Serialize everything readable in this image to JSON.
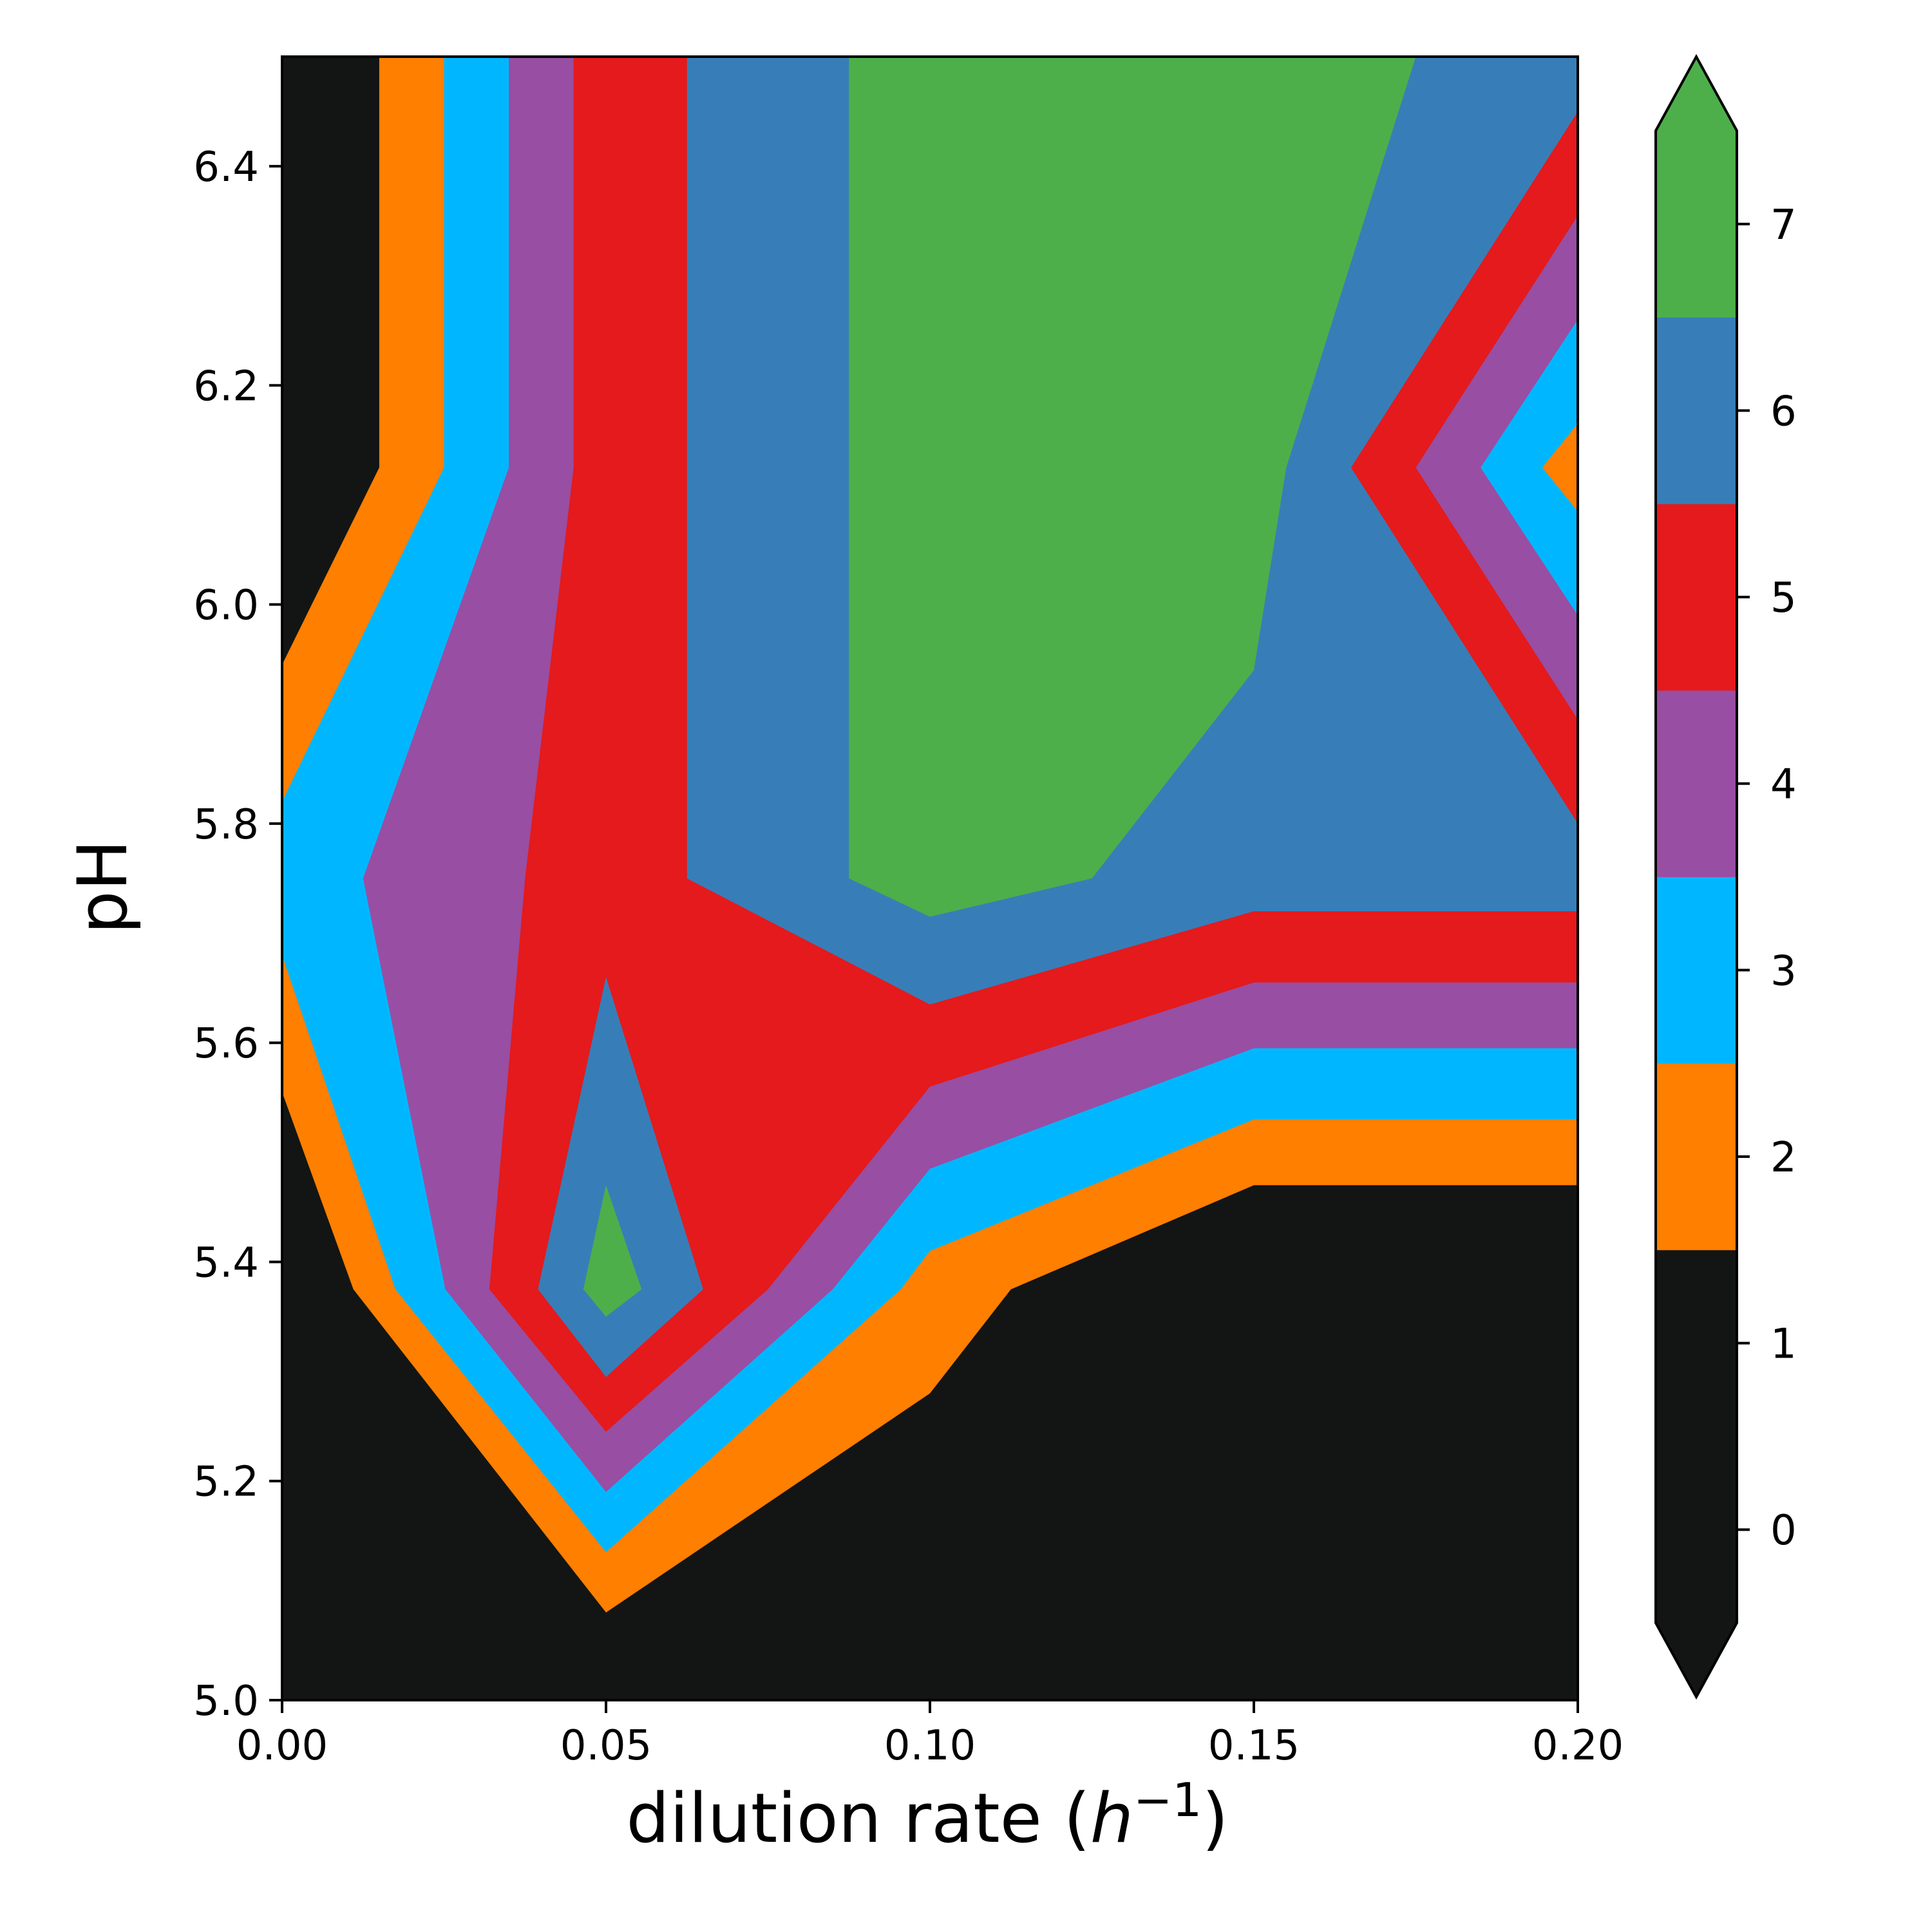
{
  "chart_data": {
    "type": "contour",
    "xlabel": "dilution rate (h⁻¹)",
    "ylabel": "pH",
    "xlim": [
      0.0,
      0.2
    ],
    "ylim": [
      5.0,
      6.5
    ],
    "x_ticks": [
      "0.00",
      "0.05",
      "0.10",
      "0.15",
      "0.20"
    ],
    "y_ticks": [
      "5.0",
      "5.2",
      "5.4",
      "5.6",
      "5.8",
      "6.0",
      "6.2",
      "6.4"
    ],
    "colorbar": {
      "ticks": [
        "0",
        "1",
        "2",
        "3",
        "4",
        "5",
        "6",
        "7"
      ],
      "extend": "both",
      "levels": [
        {
          "range": [
            -0.5,
            1.5
          ],
          "color": "#131514"
        },
        {
          "range": [
            1.5,
            2.5
          ],
          "color": "#ff7f00"
        },
        {
          "range": [
            2.5,
            3.5
          ],
          "color": "#00b7ff"
        },
        {
          "range": [
            3.5,
            4.5
          ],
          "color": "#984ea3"
        },
        {
          "range": [
            4.5,
            5.5
          ],
          "color": "#e41a1c"
        },
        {
          "range": [
            5.5,
            6.5
          ],
          "color": "#377eb8"
        },
        {
          "range": [
            6.5,
            7.5
          ],
          "color": "#4daf4a"
        }
      ]
    },
    "regions": [
      {
        "level": 0,
        "color": "#131514",
        "points": [
          [
            0.0,
            5.0
          ],
          [
            0.2,
            5.0
          ],
          [
            0.2,
            6.5
          ],
          [
            0.0,
            6.5
          ]
        ]
      },
      {
        "level": 2,
        "color": "#ff7f00",
        "points": [
          [
            0.015,
            6.5
          ],
          [
            0.2,
            6.5
          ],
          [
            0.2,
            5.47
          ],
          [
            0.15,
            5.47
          ],
          [
            0.1125,
            5.375
          ],
          [
            0.1,
            5.28
          ],
          [
            0.05,
            5.08
          ],
          [
            0.011,
            5.375
          ],
          [
            0.0,
            5.555
          ],
          [
            0.0,
            5.945
          ],
          [
            0.015,
            6.125
          ]
        ]
      },
      {
        "level": 3,
        "color": "#00b7ff",
        "points": [
          [
            0.025,
            6.5
          ],
          [
            0.2,
            6.5
          ],
          [
            0.2,
            5.53
          ],
          [
            0.15,
            5.53
          ],
          [
            0.1,
            5.41
          ],
          [
            0.0955,
            5.375
          ],
          [
            0.05,
            5.135
          ],
          [
            0.0175,
            5.375
          ],
          [
            0.0,
            5.68
          ],
          [
            0.0,
            5.82
          ],
          [
            0.025,
            6.125
          ]
        ]
      },
      {
        "level": 4,
        "color": "#984ea3",
        "points": [
          [
            0.035,
            6.5
          ],
          [
            0.2,
            6.5
          ],
          [
            0.2,
            5.595
          ],
          [
            0.15,
            5.595
          ],
          [
            0.1,
            5.485
          ],
          [
            0.085,
            5.375
          ],
          [
            0.05,
            5.19
          ],
          [
            0.0252,
            5.375
          ],
          [
            0.0125,
            5.75
          ],
          [
            0.035,
            6.125
          ]
        ]
      },
      {
        "level": 5,
        "color": "#e41a1c",
        "points": [
          [
            0.045,
            6.5
          ],
          [
            0.2,
            6.5
          ],
          [
            0.2,
            5.655
          ],
          [
            0.15,
            5.655
          ],
          [
            0.1,
            5.56
          ],
          [
            0.075,
            5.375
          ],
          [
            0.05,
            5.245
          ],
          [
            0.032,
            5.375
          ],
          [
            0.0375,
            5.75
          ],
          [
            0.045,
            6.125
          ]
        ]
      },
      {
        "level": 6,
        "color": "#377eb8",
        "points": [
          [
            0.0625,
            6.5
          ],
          [
            0.2,
            6.5
          ],
          [
            0.2,
            5.72
          ],
          [
            0.15,
            5.72
          ],
          [
            0.1,
            5.635
          ],
          [
            0.0625,
            5.75
          ]
        ]
      },
      {
        "level": 6,
        "color": "#377eb8",
        "points": [
          [
            0.05,
            5.66
          ],
          [
            0.065,
            5.375
          ],
          [
            0.05,
            5.295
          ],
          [
            0.0395,
            5.375
          ]
        ]
      },
      {
        "level": 7,
        "color": "#4daf4a",
        "points": [
          [
            0.0875,
            6.5
          ],
          [
            0.175,
            6.5
          ],
          [
            0.155,
            6.125
          ],
          [
            0.15,
            5.94
          ],
          [
            0.125,
            5.75
          ],
          [
            0.1,
            5.715
          ],
          [
            0.0875,
            5.75
          ]
        ]
      },
      {
        "level": 7,
        "color": "#4daf4a",
        "points": [
          [
            0.05,
            5.47
          ],
          [
            0.0555,
            5.375
          ],
          [
            0.05,
            5.35
          ],
          [
            0.0465,
            5.375
          ]
        ]
      },
      {
        "level": 5,
        "color": "#e41a1c",
        "points": [
          [
            0.2,
            6.45
          ],
          [
            0.165,
            6.125
          ],
          [
            0.2,
            5.8
          ]
        ]
      },
      {
        "level": 4,
        "color": "#984ea3",
        "points": [
          [
            0.2,
            6.355
          ],
          [
            0.175,
            6.125
          ],
          [
            0.2,
            5.895
          ]
        ]
      },
      {
        "level": 3,
        "color": "#00b7ff",
        "points": [
          [
            0.2,
            6.26
          ],
          [
            0.185,
            6.125
          ],
          [
            0.2,
            5.99
          ]
        ]
      },
      {
        "level": 2,
        "color": "#ff7f00",
        "points": [
          [
            0.2,
            6.165
          ],
          [
            0.1945,
            6.125
          ],
          [
            0.2,
            6.085
          ]
        ]
      }
    ]
  }
}
